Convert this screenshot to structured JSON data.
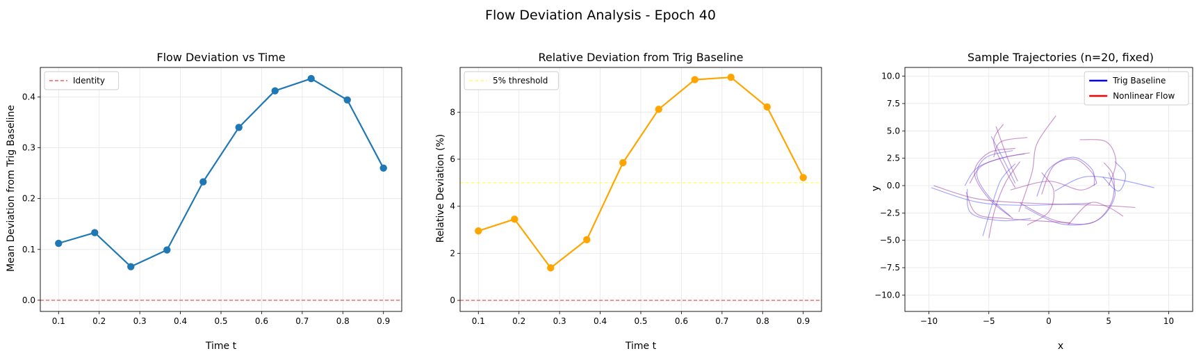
{
  "suptitle": "Flow Deviation Analysis - Epoch 40",
  "colors": {
    "series_blue": "#1f77b4",
    "series_orange": "#ffa500",
    "baseline_red": "#ff0000",
    "threshold_yellow": "#ffff00",
    "trig_blue": "#0000ff",
    "flow_red": "#ff0000",
    "overlap_purple": "#a040a0",
    "grid": "#e6e6e6"
  },
  "chart_data": [
    {
      "type": "line",
      "title": "Flow Deviation vs Time",
      "xlabel": "Time t",
      "ylabel": "Mean Deviation from Trig Baseline",
      "xlim": [
        0.055,
        0.945
      ],
      "ylim": [
        -0.022,
        0.458
      ],
      "xticks": [
        0.1,
        0.2,
        0.3,
        0.4,
        0.5,
        0.6,
        0.7,
        0.8,
        0.9
      ],
      "xtick_labels": [
        "0.1",
        "0.2",
        "0.3",
        "0.4",
        "0.5",
        "0.6",
        "0.7",
        "0.8",
        "0.9"
      ],
      "yticks": [
        0.0,
        0.1,
        0.2,
        0.3,
        0.4
      ],
      "ytick_labels": [
        "0.0",
        "0.1",
        "0.2",
        "0.3",
        "0.4"
      ],
      "grid": true,
      "legend_position": "upper-left",
      "series": [
        {
          "name": "",
          "x": [
            0.1,
            0.189,
            0.278,
            0.367,
            0.456,
            0.544,
            0.633,
            0.722,
            0.811,
            0.9
          ],
          "values": [
            0.112,
            0.133,
            0.066,
            0.099,
            0.233,
            0.34,
            0.412,
            0.436,
            0.394,
            0.26
          ],
          "marker": "circle",
          "color": "#1f77b4"
        }
      ],
      "hlines": [
        {
          "name": "Identity",
          "y": 0.0,
          "style": "dashed",
          "color": "#ff0000"
        }
      ],
      "legend": [
        {
          "label": "Identity",
          "style": "dashed",
          "color": "#ff0000"
        }
      ]
    },
    {
      "type": "line",
      "title": "Relative Deviation from Trig Baseline",
      "xlabel": "Time t",
      "ylabel": "Relative Deviation (%)",
      "xlim": [
        0.055,
        0.945
      ],
      "ylim": [
        -0.47,
        9.9
      ],
      "xticks": [
        0.1,
        0.2,
        0.3,
        0.4,
        0.5,
        0.6,
        0.7,
        0.8,
        0.9
      ],
      "xtick_labels": [
        "0.1",
        "0.2",
        "0.3",
        "0.4",
        "0.5",
        "0.6",
        "0.7",
        "0.8",
        "0.9"
      ],
      "yticks": [
        0,
        2,
        4,
        6,
        8
      ],
      "ytick_labels": [
        "0",
        "2",
        "4",
        "6",
        "8"
      ],
      "grid": true,
      "legend_position": "upper-left",
      "series": [
        {
          "name": "",
          "x": [
            0.1,
            0.189,
            0.278,
            0.367,
            0.456,
            0.544,
            0.633,
            0.722,
            0.811,
            0.9
          ],
          "values": [
            2.95,
            3.45,
            1.38,
            2.58,
            5.85,
            8.12,
            9.38,
            9.48,
            8.22,
            5.22
          ],
          "marker": "circle",
          "color": "#ffa500"
        }
      ],
      "hlines": [
        {
          "name": "5% threshold",
          "y": 5.0,
          "style": "dashed",
          "color": "#ffff00"
        },
        {
          "name": "",
          "y": 0.0,
          "style": "dashed",
          "color": "#ff0000"
        }
      ],
      "legend": [
        {
          "label": "5% threshold",
          "style": "dashed",
          "color": "#ffff00"
        }
      ]
    },
    {
      "type": "line",
      "title": "Sample Trajectories (n=20, fixed)",
      "xlabel": "x",
      "ylabel": "y",
      "xlim": [
        -12,
        12
      ],
      "ylim": [
        -11.5,
        10.8
      ],
      "xticks": [
        -10,
        -5,
        0,
        5,
        10
      ],
      "xtick_labels": [
        "−10",
        "−5",
        "0",
        "5",
        "10"
      ],
      "yticks": [
        -10.0,
        -7.5,
        -5.0,
        -2.5,
        0.0,
        2.5,
        5.0,
        7.5,
        10.0
      ],
      "ytick_labels": [
        "−10.0",
        "−7.5",
        "−5.0",
        "−2.5",
        "0.0",
        "2.5",
        "5.0",
        "7.5",
        "10.0"
      ],
      "grid": true,
      "legend_position": "upper-right",
      "legend": [
        {
          "label": "Trig Baseline",
          "style": "solid",
          "color": "#0000ff"
        },
        {
          "label": "Nonlinear Flow",
          "style": "solid",
          "color": "#ff0000"
        }
      ],
      "trajectories": [
        {
          "kind": "trig",
          "points": [
            [
              -3.2,
              -2.8
            ],
            [
              -5.0,
              -1.0
            ],
            [
              -6.0,
              1.0
            ],
            [
              -5.2,
              2.6
            ],
            [
              -3.0,
              3.2
            ]
          ]
        },
        {
          "kind": "trig",
          "points": [
            [
              -5.5,
              -4.6
            ],
            [
              -4.8,
              -2.0
            ],
            [
              -4.0,
              0.5
            ],
            [
              -2.8,
              2.0
            ]
          ]
        },
        {
          "kind": "trig",
          "points": [
            [
              -7.0,
              0.0
            ],
            [
              -6.0,
              1.6
            ],
            [
              -4.0,
              2.5
            ],
            [
              -2.0,
              2.9
            ]
          ]
        },
        {
          "kind": "trig",
          "points": [
            [
              -1.0,
              -1.0
            ],
            [
              0.0,
              1.5
            ],
            [
              2.0,
              2.6
            ],
            [
              3.6,
              1.5
            ],
            [
              3.8,
              0.0
            ]
          ]
        },
        {
          "kind": "trig",
          "points": [
            [
              -2.0,
              -2.0
            ],
            [
              1.0,
              -3.5
            ],
            [
              4.0,
              -3.2
            ],
            [
              5.5,
              -1.0
            ],
            [
              5.0,
              1.2
            ]
          ]
        },
        {
          "kind": "trig",
          "points": [
            [
              -9.8,
              -0.2
            ],
            [
              -6.0,
              -1.5
            ],
            [
              -2.0,
              -1.8
            ],
            [
              3.5,
              -1.6
            ]
          ]
        },
        {
          "kind": "trig",
          "points": [
            [
              -6.8,
              -0.3
            ],
            [
              -6.5,
              -2.5
            ],
            [
              -4.0,
              -3.2
            ],
            [
              -1.5,
              -3.0
            ]
          ]
        },
        {
          "kind": "trig",
          "points": [
            [
              4.5,
              0.8
            ],
            [
              5.8,
              -0.5
            ],
            [
              6.4,
              1.0
            ],
            [
              5.5,
              2.2
            ]
          ]
        },
        {
          "kind": "trig",
          "points": [
            [
              -4.8,
              4.5
            ],
            [
              -3.6,
              2.0
            ],
            [
              -2.8,
              0.2
            ]
          ]
        },
        {
          "kind": "trig",
          "points": [
            [
              0.5,
              -0.5
            ],
            [
              3.0,
              0.8
            ],
            [
              6.0,
              0.5
            ],
            [
              8.8,
              -0.2
            ]
          ]
        },
        {
          "kind": "flow",
          "points": [
            [
              -3.0,
              -3.0
            ],
            [
              -5.0,
              -1.2
            ],
            [
              -6.2,
              1.2
            ],
            [
              -5.0,
              3.0
            ],
            [
              -2.8,
              3.4
            ]
          ]
        },
        {
          "kind": "flow",
          "points": [
            [
              -5.0,
              -4.8
            ],
            [
              -4.5,
              -2.2
            ],
            [
              -3.6,
              0.3
            ],
            [
              -2.4,
              2.2
            ]
          ]
        },
        {
          "kind": "flow",
          "points": [
            [
              -6.6,
              0.2
            ],
            [
              -5.6,
              1.8
            ],
            [
              -3.6,
              2.6
            ],
            [
              -1.6,
              3.0
            ]
          ]
        },
        {
          "kind": "flow",
          "points": [
            [
              -0.6,
              -0.8
            ],
            [
              0.4,
              1.8
            ],
            [
              2.2,
              2.4
            ],
            [
              3.6,
              1.2
            ],
            [
              4.0,
              0.2
            ]
          ]
        },
        {
          "kind": "flow",
          "points": [
            [
              -2.4,
              -1.6
            ],
            [
              0.6,
              -3.2
            ],
            [
              3.6,
              -3.4
            ],
            [
              5.2,
              -1.6
            ],
            [
              5.4,
              0.8
            ],
            [
              4.6,
              2.1
            ]
          ]
        },
        {
          "kind": "flow",
          "points": [
            [
              -9.6,
              0.0
            ],
            [
              -6.0,
              -1.2
            ],
            [
              -1.6,
              -1.6
            ],
            [
              4.2,
              -1.8
            ],
            [
              7.2,
              -2.0
            ]
          ]
        },
        {
          "kind": "flow",
          "points": [
            [
              -6.9,
              -0.6
            ],
            [
              -6.0,
              -2.6
            ],
            [
              -3.6,
              -3.0
            ],
            [
              -1.2,
              -3.2
            ],
            [
              1.8,
              -3.4
            ]
          ]
        },
        {
          "kind": "flow",
          "points": [
            [
              -4.4,
              5.4
            ],
            [
              -3.4,
              2.4
            ],
            [
              -2.6,
              0.4
            ]
          ]
        },
        {
          "kind": "flow",
          "points": [
            [
              -2.5,
              -2.4
            ],
            [
              -1.4,
              1.2
            ],
            [
              -1.0,
              3.8
            ],
            [
              0.6,
              6.4
            ]
          ]
        },
        {
          "kind": "flow",
          "points": [
            [
              -3.8,
              5.6
            ],
            [
              -4.6,
              4.0
            ],
            [
              -3.6,
              1.4
            ],
            [
              -2.8,
              -0.2
            ]
          ]
        },
        {
          "kind": "flow",
          "points": [
            [
              -1.8,
              4.4
            ],
            [
              -4.0,
              4.0
            ],
            [
              -4.6,
              2.6
            ]
          ]
        },
        {
          "kind": "flow",
          "points": [
            [
              2.6,
              4.2
            ],
            [
              4.8,
              4.0
            ],
            [
              5.6,
              2.2
            ],
            [
              5.0,
              0.0
            ]
          ]
        },
        {
          "kind": "flow",
          "points": [
            [
              -1.8,
              -3.6
            ],
            [
              0.0,
              -2.4
            ],
            [
              0.4,
              -0.4
            ],
            [
              -0.6,
              1.2
            ]
          ]
        },
        {
          "kind": "flow",
          "points": [
            [
              1.6,
              -3.6
            ],
            [
              3.4,
              -1.6
            ],
            [
              5.0,
              -2.0
            ],
            [
              6.2,
              -2.8
            ]
          ]
        },
        {
          "kind": "flow",
          "points": [
            [
              -3.2,
              -0.4
            ],
            [
              0.0,
              0.4
            ],
            [
              2.6,
              -0.4
            ],
            [
              4.0,
              0.2
            ]
          ]
        }
      ]
    }
  ]
}
